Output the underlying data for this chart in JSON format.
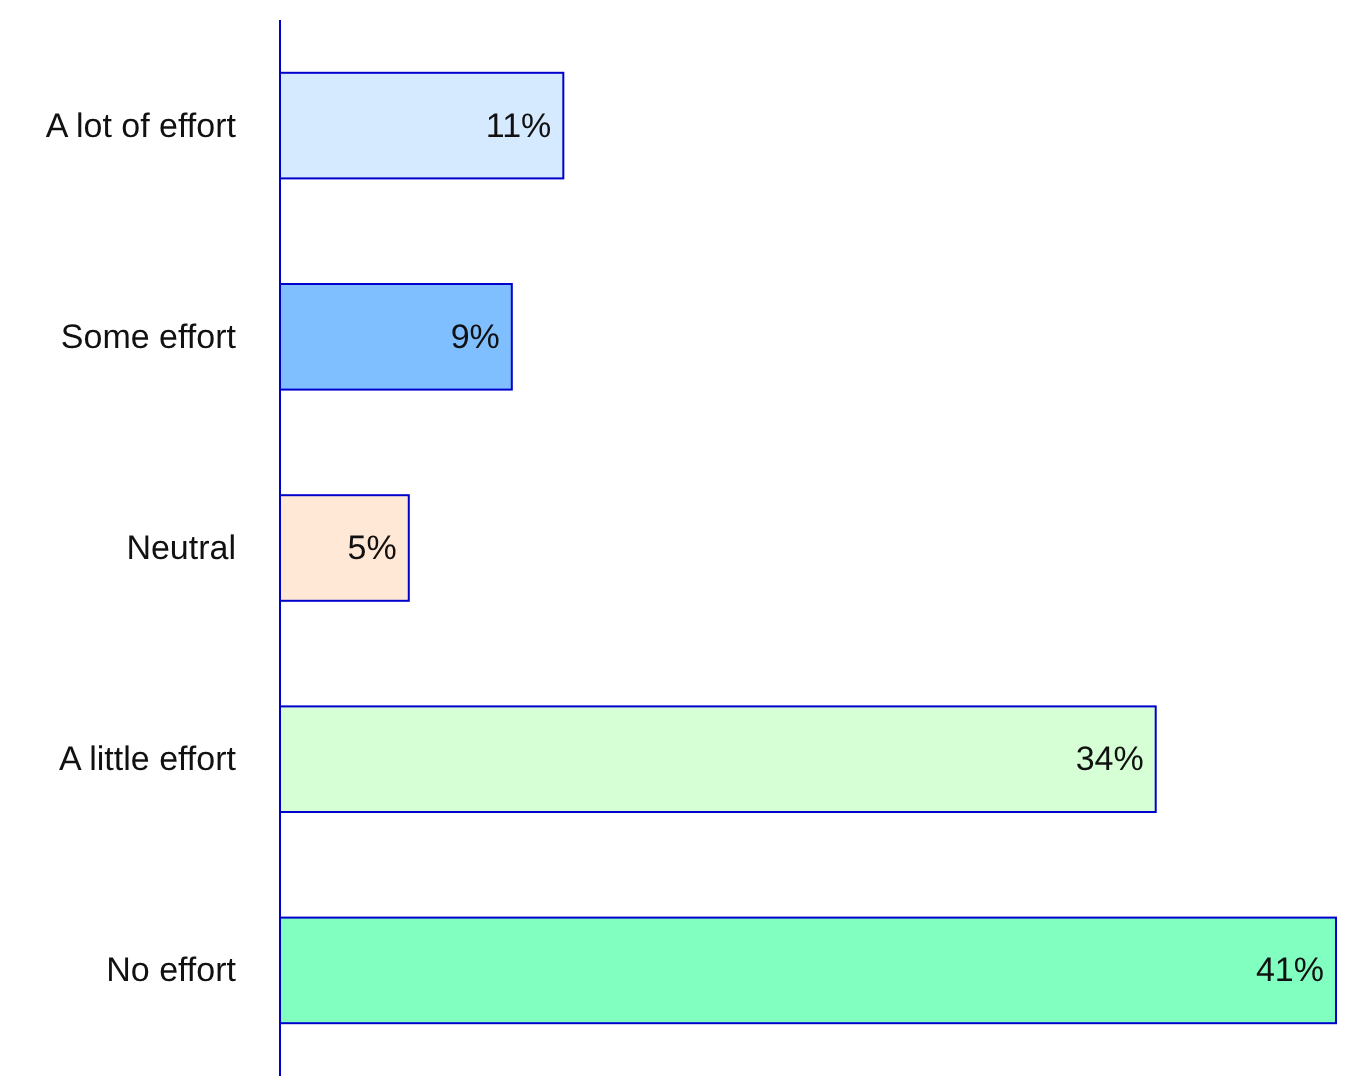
{
  "chart_data": {
    "type": "bar",
    "orientation": "horizontal",
    "categories": [
      "A lot of effort",
      "Some effort",
      "Neutral",
      "A little effort",
      "No effort"
    ],
    "values": [
      11,
      9,
      5,
      34,
      41
    ],
    "colors": [
      "#d6eaff",
      "#80bfff",
      "#ffe8d6",
      "#d6ffd6",
      "#80ffc0"
    ],
    "value_labels": [
      "11%",
      "9%",
      "5%",
      "34%",
      "41%"
    ]
  }
}
